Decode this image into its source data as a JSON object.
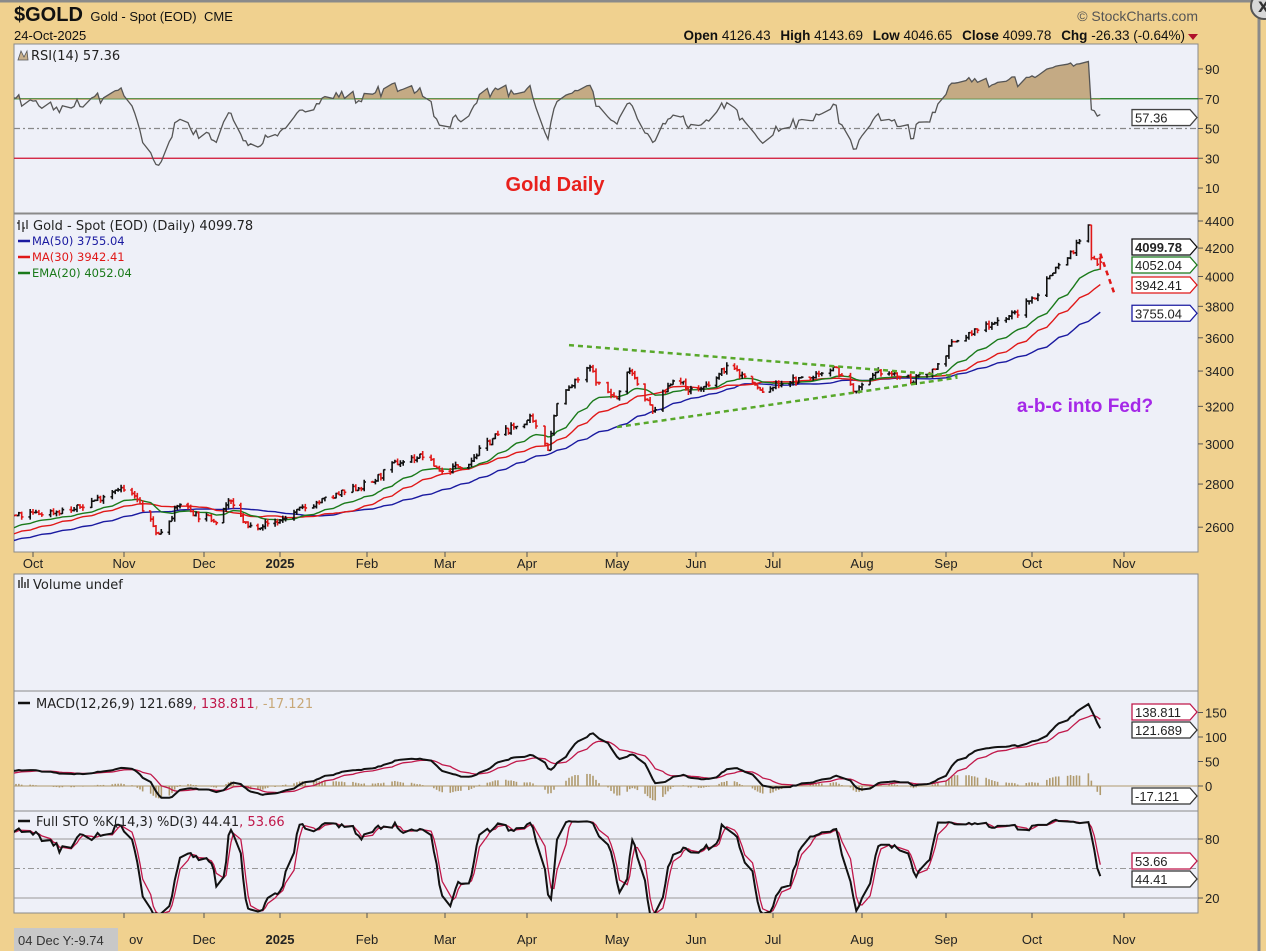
{
  "header": {
    "symbol": "$GOLD",
    "name": "Gold - Spot (EOD)",
    "exchange": "CME",
    "date": "24-Oct-2025",
    "copyright": "© StockCharts.com",
    "open_label": "Open",
    "open": "4126.43",
    "high_label": "High",
    "high": "4143.69",
    "low_label": "Low",
    "low": "4046.65",
    "close_label": "Close",
    "close": "4099.78",
    "chg_label": "Chg",
    "chg": "-26.33 (-0.64%)",
    "close_button": "X"
  },
  "tooltip": "04 Dec Y:-9.74",
  "chart_data": {
    "type": "ohlc",
    "title": "Gold Daily",
    "annotations": [
      {
        "text": "Gold Daily",
        "color": "#e8201c"
      },
      {
        "text": "a-b-c into Fed?",
        "color": "#a528e8"
      }
    ],
    "x_labels": [
      "Oct",
      "Nov",
      "Dec",
      "2025",
      "Feb",
      "Mar",
      "Apr",
      "May",
      "Jun",
      "Jul",
      "Aug",
      "Sep",
      "Oct",
      "Nov"
    ],
    "bottom_x_labels": [
      "ov",
      "Dec",
      "2025",
      "Feb",
      "Mar",
      "Apr",
      "May",
      "Jun",
      "Jul",
      "Aug",
      "Sep",
      "Oct",
      "Nov"
    ],
    "price_panel": {
      "legend": "Gold - Spot (EOD) (Daily) 4099.78",
      "ma_legends": [
        {
          "text": "MA(50) 3755.04",
          "color": "#1a1aa0",
          "period": 50,
          "type": "sma",
          "last": "3755.04"
        },
        {
          "text": "MA(30) 3942.41",
          "color": "#e01818",
          "period": 30,
          "type": "sma",
          "last": "3942.41"
        },
        {
          "text": "EMA(20) 4052.04",
          "color": "#1a7a1a",
          "period": 20,
          "type": "ema",
          "last": "4052.04"
        }
      ],
      "scale": "log",
      "ylim": [
        2480,
        4500
      ],
      "ticks": [
        "4400",
        "4200",
        "4000",
        "3800",
        "3600",
        "3400",
        "3200",
        "3000",
        "2800",
        "2600"
      ],
      "last_tag": "4099.78",
      "last_ohlc": {
        "open": 4126.43,
        "high": 4143.69,
        "low": 4046.65,
        "close": 4099.78
      },
      "closes": [
        [
          "2024-09-25",
          2650
        ],
        [
          "2024-10-01",
          2660
        ],
        [
          "2024-10-15",
          2680
        ],
        [
          "2024-10-23",
          2730
        ],
        [
          "2024-10-30",
          2785
        ],
        [
          "2024-11-05",
          2740
        ],
        [
          "2024-11-14",
          2565
        ],
        [
          "2024-11-22",
          2710
        ],
        [
          "2024-11-29",
          2650
        ],
        [
          "2024-12-06",
          2635
        ],
        [
          "2024-12-11",
          2720
        ],
        [
          "2024-12-19",
          2600
        ],
        [
          "2024-12-31",
          2625
        ],
        [
          "2025-01-10",
          2690
        ],
        [
          "2025-01-22",
          2750
        ],
        [
          "2025-02-03",
          2810
        ],
        [
          "2025-02-11",
          2900
        ],
        [
          "2025-02-21",
          2940
        ],
        [
          "2025-02-28",
          2858
        ],
        [
          "2025-03-10",
          2910
        ],
        [
          "2025-03-20",
          3040
        ],
        [
          "2025-04-02",
          3130
        ],
        [
          "2025-04-08",
          2980
        ],
        [
          "2025-04-11",
          3230
        ],
        [
          "2025-04-22",
          3420
        ],
        [
          "2025-04-25",
          3320
        ],
        [
          "2025-05-01",
          3240
        ],
        [
          "2025-05-06",
          3420
        ],
        [
          "2025-05-15",
          3170
        ],
        [
          "2025-05-23",
          3360
        ],
        [
          "2025-05-30",
          3290
        ],
        [
          "2025-06-06",
          3310
        ],
        [
          "2025-06-13",
          3430
        ],
        [
          "2025-06-20",
          3370
        ],
        [
          "2025-06-27",
          3275
        ],
        [
          "2025-07-03",
          3330
        ],
        [
          "2025-07-14",
          3360
        ],
        [
          "2025-07-22",
          3430
        ],
        [
          "2025-07-30",
          3275
        ],
        [
          "2025-08-08",
          3400
        ],
        [
          "2025-08-20",
          3345
        ],
        [
          "2025-08-28",
          3415
        ],
        [
          "2025-09-03",
          3560
        ],
        [
          "2025-09-15",
          3680
        ],
        [
          "2025-09-26",
          3760
        ],
        [
          "2025-10-03",
          3885
        ],
        [
          "2025-10-08",
          4040
        ],
        [
          "2025-10-14",
          4160
        ],
        [
          "2025-10-17",
          4250
        ],
        [
          "2025-10-20",
          4355
        ],
        [
          "2025-10-21",
          4125
        ],
        [
          "2025-10-24",
          4099.78
        ]
      ],
      "trendlines": [
        {
          "name": "upper-triangle-line",
          "color": "#58a82a",
          "from": [
            "2025-04-15",
            3555
          ],
          "to": [
            "2025-09-05",
            3371
          ]
        },
        {
          "name": "lower-triangle-line",
          "color": "#58a82a",
          "from": [
            "2025-05-01",
            3088
          ],
          "to": [
            "2025-09-05",
            3362
          ]
        },
        {
          "name": "projected-decline-line",
          "color": "#e01818",
          "from": [
            "2025-10-24",
            4160
          ],
          "to": [
            "2025-10-29",
            3870
          ]
        }
      ]
    },
    "rsi_panel": {
      "legend": "RSI(14) 57.36",
      "period": 14,
      "last_tag": "57.36",
      "ylim": [
        0,
        100
      ],
      "ticks": [
        "90",
        "70",
        "50",
        "30",
        "10"
      ],
      "overbought": 70,
      "oversold": 30,
      "overbought_color": "#1a7a1a",
      "oversold_color": "#d01030"
    },
    "volume_panel": {
      "legend": "Volume undef"
    },
    "macd_panel": {
      "legend_macd": "MACD(12,26,9) 121.689",
      "legend_signal": ", 138.811",
      "legend_hist": ", -17.121",
      "macd_color": "#111111",
      "signal_color": "#c0184a",
      "hist_color": "#b09a6e",
      "ticks": [
        "150",
        "100",
        "50",
        "0"
      ],
      "tags": [
        "138.811",
        "121.689",
        "-17.121"
      ]
    },
    "sto_panel": {
      "legend_k": "Full STO %K(14,3) %D(3) 44.41",
      "legend_d": ", 53.66",
      "k_color": "#111111",
      "d_color": "#c0184a",
      "ticks": [
        "80",
        "20"
      ],
      "tags": [
        "53.66",
        "44.41"
      ]
    }
  }
}
